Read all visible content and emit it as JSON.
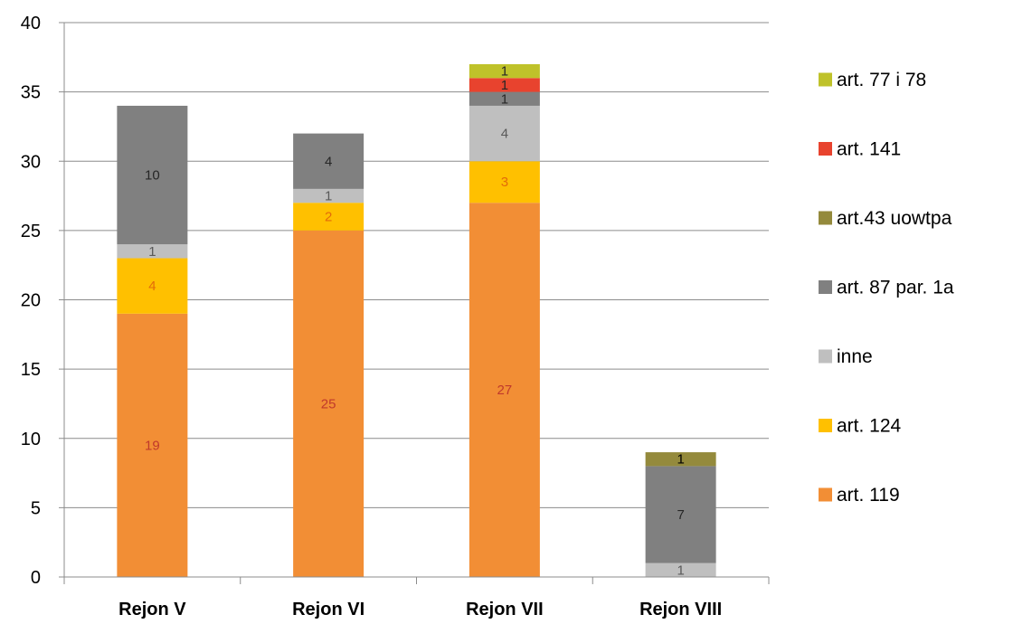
{
  "chart_data": {
    "type": "bar",
    "stacked": true,
    "categories": [
      "Rejon V",
      "Rejon VI",
      "Rejon VII",
      "Rejon VIII"
    ],
    "ylim": [
      0,
      40
    ],
    "yticks": [
      "0",
      "5",
      "10",
      "15",
      "20",
      "25",
      "30",
      "35",
      "40"
    ],
    "grid": true,
    "legend_position": "right",
    "series": [
      {
        "name": "art. 119",
        "color": "#F28E35",
        "label_color": "#C0392B",
        "values": [
          19,
          25,
          27,
          0
        ]
      },
      {
        "name": "art. 124",
        "color": "#FFC000",
        "label_color": "#E36C09",
        "values": [
          4,
          2,
          3,
          0
        ]
      },
      {
        "name": "inne",
        "color": "#BFBFBF",
        "label_color": "#595959",
        "values": [
          1,
          1,
          4,
          1
        ]
      },
      {
        "name": "art. 87 par. 1a",
        "color": "#808080",
        "label_color": "#262626",
        "values": [
          10,
          4,
          1,
          7
        ]
      },
      {
        "name": "art.43 uowtpa",
        "color": "#948A3C",
        "label_color": "#000000",
        "values": [
          0,
          0,
          0,
          1
        ]
      },
      {
        "name": "art. 141",
        "color": "#E8432E",
        "label_color": "#262626",
        "values": [
          0,
          0,
          1,
          0
        ]
      },
      {
        "name": "art. 77 i 78",
        "color": "#BFC22A",
        "label_color": "#262626",
        "values": [
          0,
          0,
          1,
          0
        ]
      }
    ]
  }
}
